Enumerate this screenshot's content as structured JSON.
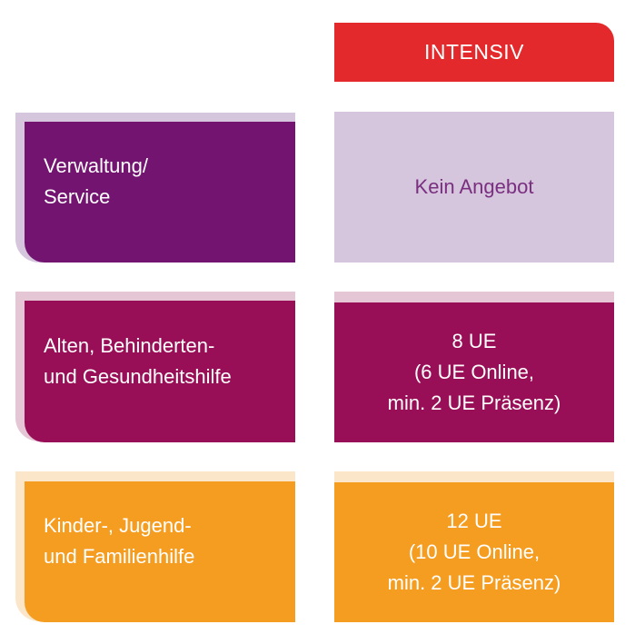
{
  "header": {
    "label": "INTENSIV"
  },
  "rows": [
    {
      "category": [
        "Verwaltung/",
        "Service"
      ],
      "offer": [
        "Kein Angebot"
      ],
      "color": "#721470",
      "light_color": "#d5c5dd"
    },
    {
      "category": [
        "Alten, Behinderten-",
        "und Gesundheitshilfe"
      ],
      "offer": [
        "8 UE",
        "(6 UE Online,",
        "min. 2 UE Präsenz)"
      ],
      "color": "#990f57",
      "light_color": "#e5c6d5"
    },
    {
      "category": [
        "Kinder-, Jugend-",
        "und Familienhilfe"
      ],
      "offer": [
        "12 UE",
        "(10 UE Online,",
        "min. 2 UE Präsenz)"
      ],
      "color": "#f59d20",
      "light_color": "#fbe6c9"
    }
  ],
  "colors": {
    "header": "#e3292b",
    "no_offer_text": "#7a2f80"
  }
}
